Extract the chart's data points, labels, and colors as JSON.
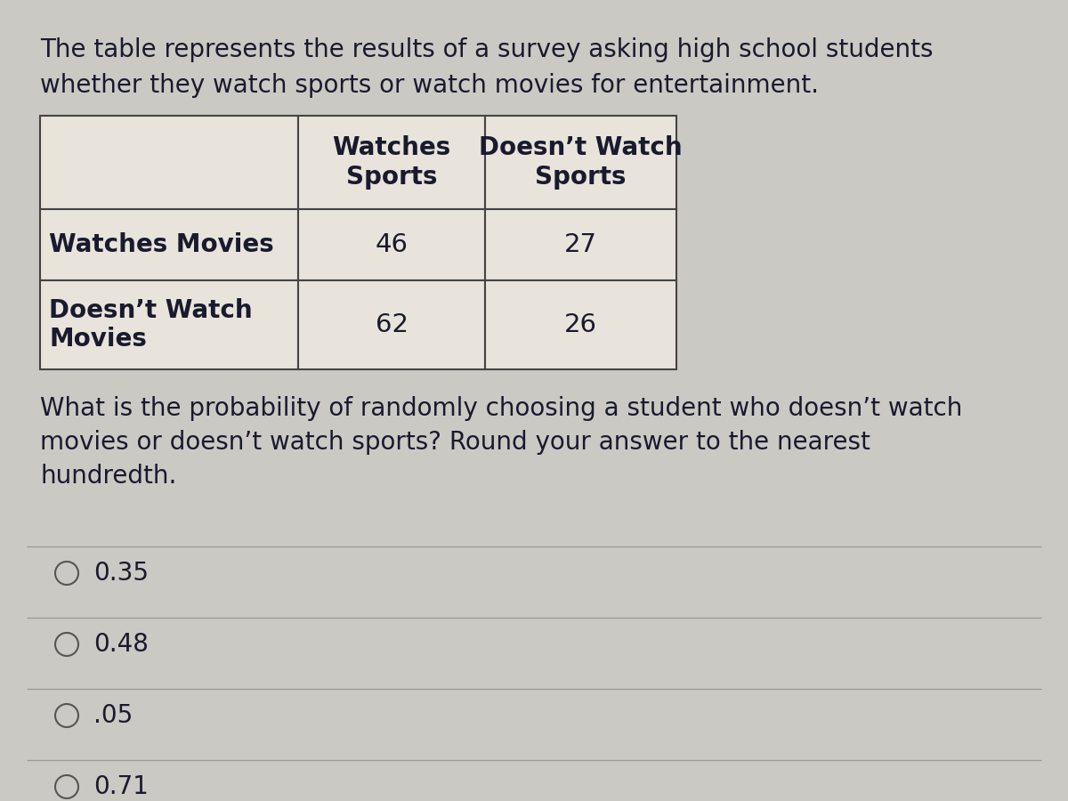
{
  "background_color": "#cbc9c4",
  "intro_text_line1": "The table represents the results of a survey asking high school students",
  "intro_text_line2": "whether they watch sports or watch movies for entertainment.",
  "table": {
    "col_headers": [
      "Watches\nSports",
      "Doesn’t Watch\nSports"
    ],
    "row_headers": [
      "Watches Movies",
      "Doesn’t Watch\nMovies"
    ],
    "values": [
      [
        46,
        27
      ],
      [
        62,
        26
      ]
    ],
    "cell_bg": "#e8e4dc",
    "border_color": "#444444"
  },
  "question_text_line1": "What is the probability of randomly choosing a student who doesn’t watch",
  "question_text_line2": "movies or doesn’t watch sports? Round your answer to the nearest",
  "question_text_line3": "hundredth.",
  "choices": [
    "0.35",
    "0.48",
    ".05",
    "0.71"
  ],
  "text_color": "#1a1a2e",
  "font_size_intro": 20,
  "font_size_table_header": 20,
  "font_size_table_row": 20,
  "font_size_table_data": 21,
  "font_size_question": 20,
  "font_size_choices": 20,
  "divider_color": "#999999",
  "circle_color": "#555555"
}
